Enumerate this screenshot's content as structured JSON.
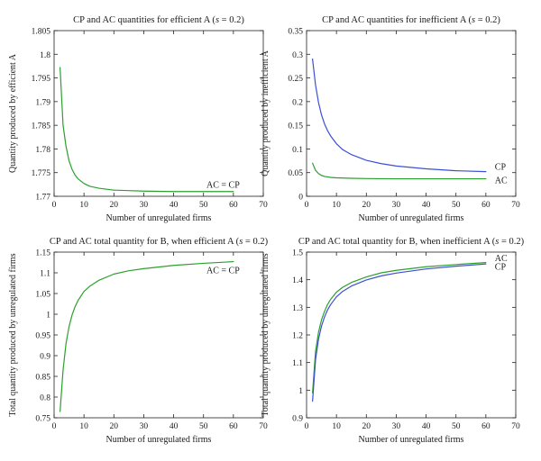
{
  "chart_data": [
    {
      "type": "line",
      "title_prefix": "CP and AC quantities for efficient A (",
      "title_var": "s",
      "title_suffix": " = 0.2)",
      "xlabel": "Number of unregulated firms",
      "ylabel": "Quantity produced by efficient A",
      "xlim": [
        0,
        70
      ],
      "ylim": [
        1.77,
        1.805
      ],
      "xticks": [
        "0",
        "10",
        "20",
        "30",
        "40",
        "50",
        "60",
        "70"
      ],
      "yticks": [
        "1.77",
        "1.775",
        "1.78",
        "1.785",
        "1.79",
        "1.795",
        "1.8",
        "1.805"
      ],
      "series": [
        {
          "color": "#2ca02c",
          "x": [
            2,
            3,
            4,
            5,
            6,
            7,
            8,
            10,
            12,
            15,
            20,
            25,
            30,
            40,
            50,
            60
          ],
          "y": [
            1.7972,
            1.785,
            1.7805,
            1.7775,
            1.7757,
            1.7745,
            1.7737,
            1.7727,
            1.7721,
            1.7717,
            1.7713,
            1.7712,
            1.7711,
            1.771,
            1.771,
            1.771
          ]
        }
      ],
      "annotations": [
        {
          "text": "AC = CP",
          "x": 51,
          "y": 1.7725
        }
      ]
    },
    {
      "type": "line",
      "title_prefix": "CP and AC quantities for inefficient A (",
      "title_var": "s",
      "title_suffix": " = 0.2)",
      "xlabel": "Number of unregulated firms",
      "ylabel": "Quantity produced by inefficient A",
      "xlim": [
        0,
        70
      ],
      "ylim": [
        0,
        0.35
      ],
      "xticks": [
        "0",
        "10",
        "20",
        "30",
        "40",
        "50",
        "60",
        "70"
      ],
      "yticks": [
        "0",
        "0.05",
        "0.1",
        "0.15",
        "0.2",
        "0.25",
        "0.3",
        "0.35"
      ],
      "series": [
        {
          "name": "CP",
          "color": "#3b4fd6",
          "x": [
            2,
            3,
            4,
            5,
            6,
            7,
            8,
            10,
            12,
            15,
            20,
            25,
            30,
            40,
            50,
            60
          ],
          "y": [
            0.29,
            0.235,
            0.198,
            0.172,
            0.153,
            0.139,
            0.128,
            0.111,
            0.099,
            0.088,
            0.076,
            0.069,
            0.064,
            0.058,
            0.054,
            0.052
          ]
        },
        {
          "name": "AC",
          "color": "#2ca02c",
          "x": [
            2,
            3,
            4,
            5,
            6,
            8,
            10,
            15,
            20,
            30,
            40,
            50,
            60
          ],
          "y": [
            0.07,
            0.055,
            0.048,
            0.044,
            0.042,
            0.04,
            0.039,
            0.038,
            0.0375,
            0.037,
            0.037,
            0.037,
            0.037
          ]
        }
      ],
      "annotations": [
        {
          "text": "CP",
          "x": 63,
          "y": 0.063
        },
        {
          "text": "AC",
          "x": 63,
          "y": 0.034
        }
      ]
    },
    {
      "type": "line",
      "title_prefix": "CP and AC total quantity for B, when efficient A (",
      "title_var": "s",
      "title_suffix": " = 0.2)",
      "xlabel": "Number of unregulated firms",
      "ylabel": "Total quantity produced by unregulated firms",
      "xlim": [
        0,
        70
      ],
      "ylim": [
        0.75,
        1.15
      ],
      "xticks": [
        "0",
        "10",
        "20",
        "30",
        "40",
        "50",
        "60",
        "70"
      ],
      "yticks": [
        "0.75",
        "0.8",
        "0.85",
        "0.9",
        "0.95",
        "1",
        "1.05",
        "1.1",
        "1.15"
      ],
      "series": [
        {
          "color": "#2ca02c",
          "x": [
            2,
            3,
            4,
            5,
            6,
            7,
            8,
            10,
            12,
            15,
            20,
            25,
            30,
            40,
            50,
            60
          ],
          "y": [
            0.765,
            0.865,
            0.93,
            0.97,
            0.998,
            1.018,
            1.033,
            1.055,
            1.068,
            1.082,
            1.097,
            1.105,
            1.11,
            1.118,
            1.123,
            1.127
          ]
        }
      ],
      "annotations": [
        {
          "text": "AC = CP",
          "x": 51,
          "y": 1.107
        }
      ]
    },
    {
      "type": "line",
      "title_prefix": "CP and AC total quantity for B, when inefficient A (",
      "title_var": "s",
      "title_suffix": " = 0.2)",
      "xlabel": "Number of unregulated firms",
      "ylabel": "Total quantity produced by unregulated firms",
      "xlim": [
        0,
        70
      ],
      "ylim": [
        0.9,
        1.5
      ],
      "xticks": [
        "0",
        "10",
        "20",
        "30",
        "40",
        "50",
        "60",
        "70"
      ],
      "yticks": [
        "0.9",
        "1",
        "1.1",
        "1.2",
        "1.3",
        "1.4",
        "1.5"
      ],
      "series": [
        {
          "name": "AC",
          "color": "#2ca02c",
          "x": [
            2,
            3,
            4,
            5,
            6,
            7,
            8,
            10,
            12,
            15,
            20,
            25,
            30,
            40,
            50,
            60
          ],
          "y": [
            0.99,
            1.14,
            1.21,
            1.255,
            1.285,
            1.31,
            1.328,
            1.355,
            1.372,
            1.39,
            1.41,
            1.425,
            1.434,
            1.447,
            1.455,
            1.462
          ]
        },
        {
          "name": "CP",
          "color": "#3b4fd6",
          "x": [
            2,
            3,
            4,
            5,
            6,
            7,
            8,
            10,
            12,
            15,
            20,
            25,
            30,
            40,
            50,
            60
          ],
          "y": [
            0.96,
            1.11,
            1.185,
            1.232,
            1.265,
            1.29,
            1.309,
            1.338,
            1.357,
            1.377,
            1.399,
            1.414,
            1.424,
            1.439,
            1.449,
            1.457
          ]
        }
      ],
      "annotations": [
        {
          "text": "AC",
          "x": 63,
          "y": 1.478
        },
        {
          "text": "CP",
          "x": 63,
          "y": 1.448
        }
      ]
    }
  ]
}
